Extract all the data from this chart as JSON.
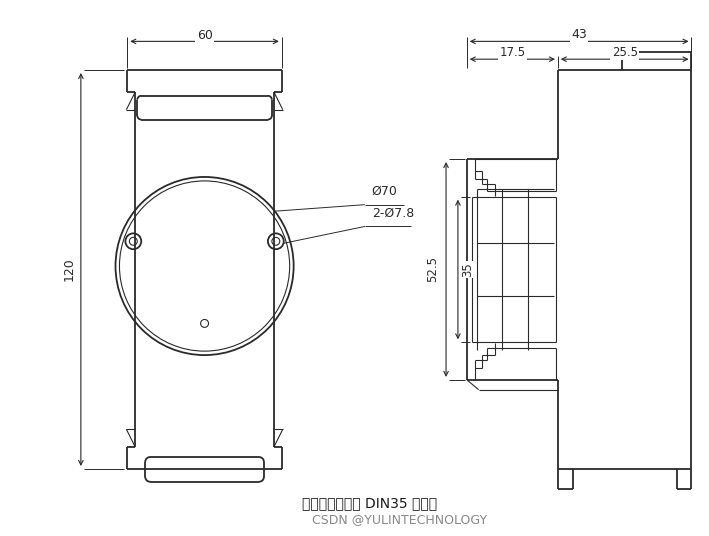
{
  "bg_color": "#ffffff",
  "line_color": "#2a2a2a",
  "dim_color": "#2a2a2a",
  "text_color": "#1a1a1a",
  "gray_color": "#888888",
  "fig_width": 7.09,
  "fig_height": 5.36,
  "bottom_text1": "可以安装在标准 DIN35 导轨上",
  "bottom_text2": "CSDN @YULINTECHNOLOGY",
  "dim_60": "60",
  "dim_120": "120",
  "dim_43": "43",
  "dim_17_5": "17.5",
  "dim_25_5": "25.5",
  "dim_52_5": "52.5",
  "dim_35": "35",
  "dim_phi70": "Ø70",
  "dim_2phi78": "2-Ø7.8"
}
